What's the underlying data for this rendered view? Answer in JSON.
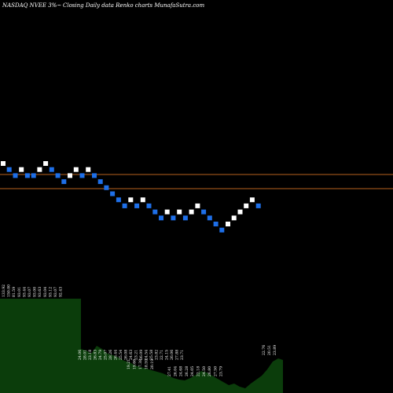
{
  "header": {
    "ticker": "NASDAQ NVEE 3%~",
    "description": "Closing Daily data Renko charts MunafaSutra.com"
  },
  "colors": {
    "background": "#000000",
    "brick_up": "#ffffff",
    "brick_down": "#1e6fe8",
    "reference_line": "#b8621e",
    "volume_fill": "#0b3d0b"
  },
  "chart_data": {
    "type": "renko",
    "title": "NASDAQ NVEE 3%~ Closing Daily data Renko charts MunafaSutra.com",
    "brick_direction": [
      "up",
      "down",
      "down",
      "up",
      "down",
      "down",
      "up",
      "up",
      "down",
      "down",
      "down",
      "up",
      "up",
      "down",
      "up",
      "down",
      "down",
      "down",
      "down",
      "down",
      "down",
      "up",
      "down",
      "up",
      "down",
      "down",
      "down",
      "up",
      "down",
      "up",
      "down",
      "up",
      "up",
      "down",
      "down",
      "down",
      "down",
      "up",
      "up",
      "up",
      "up",
      "up",
      "down"
    ],
    "brick_level": [
      0,
      -1,
      -2,
      -1,
      -2,
      -2,
      -1,
      0,
      -1,
      -2,
      -3,
      -2,
      -1,
      -2,
      -1,
      -2,
      -3,
      -4,
      -5,
      -6,
      -7,
      -6,
      -7,
      -6,
      -7,
      -8,
      -9,
      -8,
      -9,
      -8,
      -9,
      -8,
      -7,
      -8,
      -9,
      -10,
      -11,
      -10,
      -9,
      -8,
      -7,
      -6,
      -7
    ],
    "reference_lines": [
      "upper",
      "lower"
    ],
    "volume_labels": [
      [
        "133.92",
        "150.00",
        "81.59",
        "93.01",
        "93.44",
        "93.07",
        "93.00",
        "93.63",
        "93.04",
        "93.12",
        "93.07",
        "92.43"
      ],
      [
        "24.06",
        "28.01",
        "23.18",
        "26.83",
        "24.79",
        "25.07",
        "28.26",
        "26.44",
        "25.54",
        "26.08",
        "24.63",
        "23.21",
        "26.09",
        "24.54",
        "25.58",
        "23.82",
        "22.71",
        "24.15",
        "26.06",
        "27.88",
        "23.71"
      ],
      [
        "19.21",
        "19.66",
        "17.38",
        "18.59",
        "20.19"
      ],
      [
        "27.41",
        "26.04",
        "24.68",
        "26.28",
        "24.05",
        "22.18",
        "24.50",
        "26.80",
        "27.50",
        "23.79"
      ],
      [
        "22.76",
        "20.51",
        "23.89"
      ]
    ]
  }
}
